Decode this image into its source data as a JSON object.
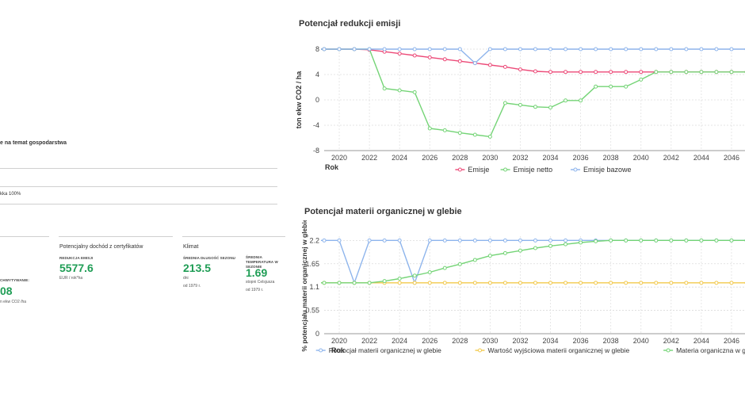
{
  "left_panel": {
    "farm_info_heading": "e na temat gospodarstwa",
    "row_text": "kka 100%",
    "cards": [
      {
        "id": "accumulated",
        "label": "CHWYTYWANIE:",
        "value": "08",
        "unit": "n ekw CO2 /ha"
      },
      {
        "id": "income",
        "title": "Potencjalny dochód z certyfikatów",
        "label": "REDUKCJA EMISJI",
        "value": "5577.6",
        "unit": "EUR / rok*ha"
      },
      {
        "id": "climate",
        "title": "Klimat",
        "metrics": [
          {
            "label": "ŚREDNIA DŁUGOŚĆ SEZONU",
            "value": "213.5",
            "unit": "dni",
            "note": "od 1979 r."
          },
          {
            "label": "ŚREDNIA TEMPERATURA W SEZONIE",
            "value": "1.69",
            "unit": "stopni Celsjusza",
            "note": "od 1979 r."
          }
        ]
      }
    ]
  },
  "chart_data": [
    {
      "type": "line",
      "title": "Potencjał redukcji emisji",
      "xlabel": "Rok",
      "ylabel": "ton ekw CO2 / ha",
      "xlim": [
        2019,
        2047
      ],
      "ylim": [
        -8,
        8
      ],
      "yticks": [
        -8,
        -4,
        0,
        4,
        8
      ],
      "xticks": [
        2020,
        2022,
        2024,
        2026,
        2028,
        2030,
        2032,
        2034,
        2036,
        2038,
        2040,
        2042,
        2044,
        2046
      ],
      "grid": true,
      "legend_position": "bottom",
      "series": [
        {
          "name": "Emisje",
          "color": "#ec4a78",
          "x": [
            2018,
            2019,
            2020,
            2021,
            2022,
            2023,
            2024,
            2025,
            2026,
            2027,
            2028,
            2029,
            2030,
            2031,
            2032,
            2033,
            2034,
            2035,
            2036,
            2037,
            2038,
            2039,
            2040,
            2041,
            2042,
            2043,
            2044,
            2045,
            2046,
            2047
          ],
          "y": [
            8,
            8,
            8,
            8,
            7.9,
            7.6,
            7.3,
            7.0,
            6.7,
            6.4,
            6.1,
            5.8,
            5.5,
            5.2,
            4.8,
            4.5,
            4.4,
            4.4,
            4.4,
            4.4,
            4.4,
            4.4,
            4.4,
            4.4,
            4.4,
            4.4,
            4.4,
            4.4,
            4.4,
            4.4
          ]
        },
        {
          "name": "Emisje netto",
          "color": "#74d476",
          "x": [
            2018,
            2019,
            2020,
            2021,
            2022,
            2023,
            2024,
            2025,
            2026,
            2027,
            2028,
            2029,
            2030,
            2031,
            2032,
            2033,
            2034,
            2035,
            2036,
            2037,
            2038,
            2039,
            2040,
            2041,
            2042,
            2043,
            2044,
            2045,
            2046,
            2047
          ],
          "y": [
            8,
            8,
            8,
            8,
            8,
            1.8,
            1.5,
            1.2,
            -4.5,
            -4.8,
            -5.2,
            -5.5,
            -5.8,
            -0.5,
            -0.8,
            -1.1,
            -1.2,
            -0.1,
            -0.1,
            2.1,
            2.1,
            2.1,
            3.2,
            4.4,
            4.4,
            4.4,
            4.4,
            4.4,
            4.4,
            4.4
          ]
        },
        {
          "name": "Emisje bazowe",
          "color": "#8db4ec",
          "x": [
            2018,
            2019,
            2020,
            2021,
            2022,
            2023,
            2024,
            2025,
            2026,
            2027,
            2028,
            2029,
            2030,
            2031,
            2032,
            2033,
            2034,
            2035,
            2036,
            2037,
            2038,
            2039,
            2040,
            2041,
            2042,
            2043,
            2044,
            2045,
            2046,
            2047
          ],
          "y": [
            8,
            8,
            8,
            8,
            8,
            8,
            8,
            8,
            8,
            8,
            8,
            5.8,
            8,
            8,
            8,
            8,
            8,
            8,
            8,
            8,
            8,
            8,
            8,
            8,
            8,
            8,
            8,
            8,
            8,
            8
          ]
        }
      ]
    },
    {
      "type": "line",
      "title": "Potencjał materii organicznej w glebie",
      "xlabel": "Rok",
      "ylabel": "% potencjału materii organicznej w glebie",
      "xlim": [
        2019,
        2047
      ],
      "ylim": [
        0,
        2.3
      ],
      "yticks": [
        0,
        0.55,
        1.1,
        1.65,
        2.2
      ],
      "ytick_labels": [
        "0",
        "0.55",
        "1.1",
        "1.65",
        "2.2"
      ],
      "xticks": [
        2020,
        2022,
        2024,
        2026,
        2028,
        2030,
        2032,
        2034,
        2036,
        2038,
        2040,
        2042,
        2044,
        2046
      ],
      "grid": true,
      "legend_position": "bottom",
      "series": [
        {
          "name": "Potencjał materii organicznej w glebie",
          "color": "#8db4ec",
          "x": [
            2018,
            2019,
            2020,
            2021,
            2022,
            2023,
            2024,
            2025,
            2026,
            2027,
            2028,
            2029,
            2030,
            2031,
            2032,
            2033,
            2034,
            2035,
            2036,
            2037,
            2038,
            2039,
            2040,
            2041,
            2042,
            2043,
            2044,
            2045,
            2046,
            2047
          ],
          "y": [
            2.2,
            2.2,
            2.2,
            1.2,
            2.2,
            2.2,
            2.2,
            1.2,
            2.2,
            2.2,
            2.2,
            2.2,
            2.2,
            2.2,
            2.2,
            2.2,
            2.2,
            2.2,
            2.2,
            2.2,
            2.2,
            2.2,
            2.2,
            2.2,
            2.2,
            2.2,
            2.2,
            2.2,
            2.2,
            2.2
          ]
        },
        {
          "name": "Wartość wyjściowa materii organicznej w glebie",
          "color": "#f2c94c",
          "x": [
            2018,
            2019,
            2020,
            2021,
            2022,
            2023,
            2024,
            2025,
            2026,
            2027,
            2028,
            2029,
            2030,
            2031,
            2032,
            2033,
            2034,
            2035,
            2036,
            2037,
            2038,
            2039,
            2040,
            2041,
            2042,
            2043,
            2044,
            2045,
            2046,
            2047
          ],
          "y": [
            1.2,
            1.2,
            1.2,
            1.2,
            1.2,
            1.2,
            1.2,
            1.2,
            1.2,
            1.2,
            1.2,
            1.2,
            1.2,
            1.2,
            1.2,
            1.2,
            1.2,
            1.2,
            1.2,
            1.2,
            1.2,
            1.2,
            1.2,
            1.2,
            1.2,
            1.2,
            1.2,
            1.2,
            1.2,
            1.2
          ]
        },
        {
          "name": "Materia organiczna w glebie",
          "color": "#74d476",
          "x": [
            2018,
            2019,
            2020,
            2021,
            2022,
            2023,
            2024,
            2025,
            2026,
            2027,
            2028,
            2029,
            2030,
            2031,
            2032,
            2033,
            2034,
            2035,
            2036,
            2037,
            2038,
            2039,
            2040,
            2041,
            2042,
            2043,
            2044,
            2045,
            2046,
            2047
          ],
          "y": [
            1.2,
            1.2,
            1.2,
            1.2,
            1.2,
            1.24,
            1.3,
            1.37,
            1.45,
            1.55,
            1.64,
            1.74,
            1.84,
            1.9,
            1.96,
            2.02,
            2.07,
            2.11,
            2.15,
            2.18,
            2.2,
            2.2,
            2.2,
            2.2,
            2.2,
            2.2,
            2.2,
            2.2,
            2.2,
            2.2
          ]
        }
      ]
    }
  ]
}
